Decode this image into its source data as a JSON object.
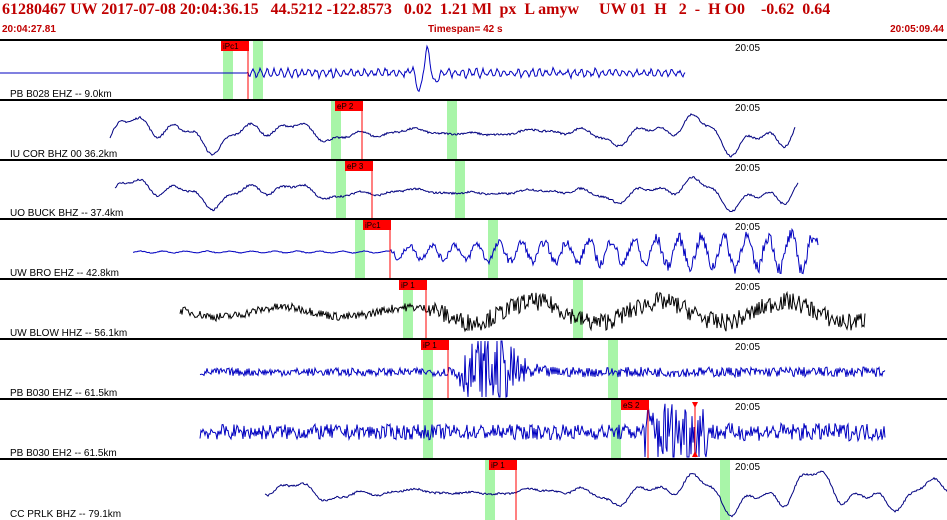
{
  "header": {
    "title": "61280467 UW 2017-07-08 20:04:36.15   44.5212 -122.8573   0.02  1.21 Ml  px  L amyw     UW 01  H   2  -  H O0    -0.62  0.64",
    "start_time": "20:04:27.81",
    "timespan": "Timespan=  42 s",
    "end_time": "20:05:09.44"
  },
  "traces": [
    {
      "label": "PB B028 EHZ -- 9.0km",
      "color": "#0000c0",
      "time_mark": "20:05",
      "picks": [
        {
          "label": "iPc1",
          "color": "#ff0000"
        }
      ]
    },
    {
      "label": "IU COR BHZ 00 36.2km",
      "color": "#000080",
      "time_mark": "20:05",
      "picks": [
        {
          "label": "eP 2",
          "color": "#ff0000"
        }
      ]
    },
    {
      "label": "UO BUCK BHZ -- 37.4km",
      "color": "#000080",
      "time_mark": "20:05",
      "picks": [
        {
          "label": "eP 3",
          "color": "#ff0000"
        }
      ]
    },
    {
      "label": "UW BRO EHZ -- 42.8km",
      "color": "#0000c0",
      "time_mark": "20:05",
      "picks": [
        {
          "label": "iPc1",
          "color": "#ff0000"
        }
      ]
    },
    {
      "label": "UW BLOW HHZ -- 56.1km",
      "color": "#000000",
      "time_mark": "20:05",
      "picks": [
        {
          "label": "iP 1",
          "color": "#ff0000"
        }
      ]
    },
    {
      "label": "PB B030 EHZ -- 61.5km",
      "color": "#0000c0",
      "time_mark": "20:05",
      "picks": [
        {
          "label": "iP 1",
          "color": "#ff0000"
        }
      ]
    },
    {
      "label": "PB B030 EH2 -- 61.5km",
      "color": "#0000c0",
      "time_mark": "20:05",
      "picks": [
        {
          "label": "eS 2",
          "color": "#ff0000"
        }
      ]
    },
    {
      "label": "CC PRLK BHZ -- 79.1km",
      "color": "#000080",
      "time_mark": "20:05",
      "picks": [
        {
          "label": "iP 1",
          "color": "#ff0000"
        }
      ]
    }
  ]
}
